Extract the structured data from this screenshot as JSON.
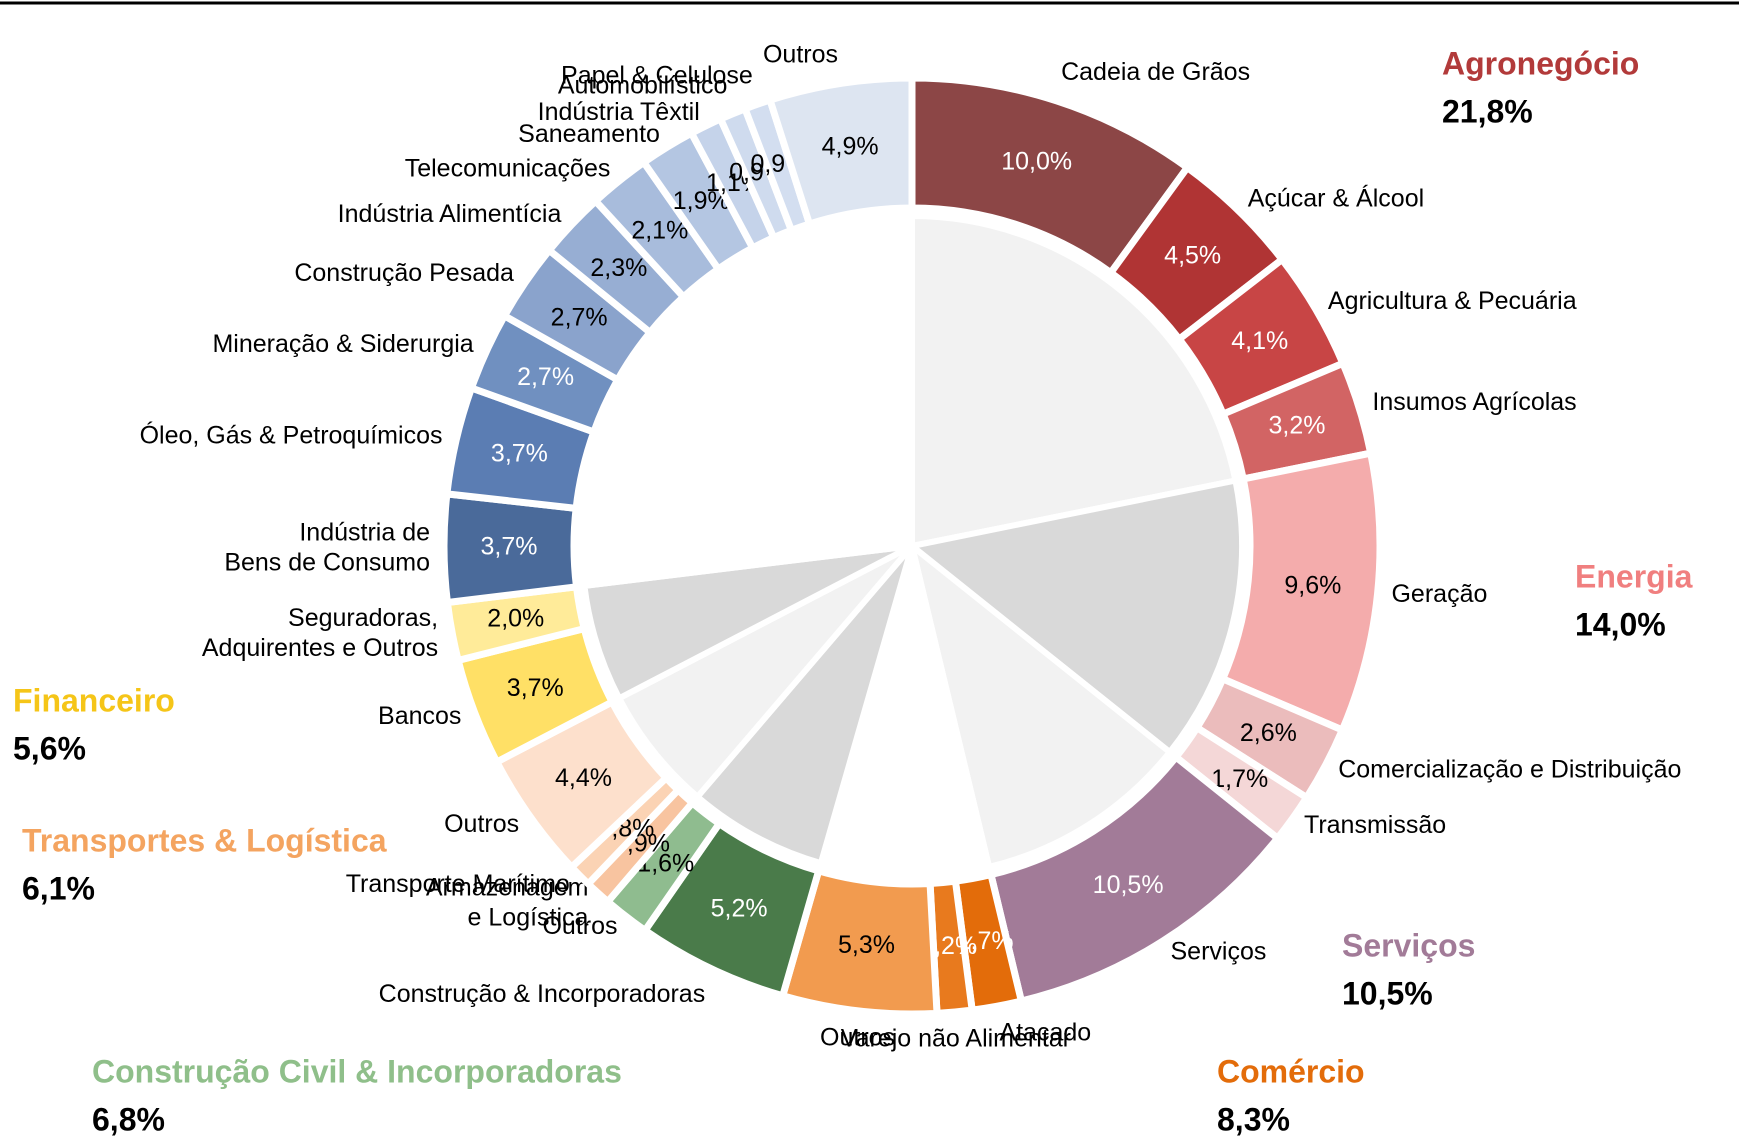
{
  "chart_data": {
    "type": "sunburst",
    "groups": [
      {
        "name": "Agronegócio",
        "value": 21.8,
        "value_label": "21,8%",
        "color": "#b23a3a",
        "inner_color": "#f2f2f2",
        "children": [
          {
            "name": "Cadeia de Grãos",
            "value": 10.0,
            "value_label": "10,0%",
            "color": "#8c4646"
          },
          {
            "name": "Açúcar & Álcool",
            "value": 4.5,
            "value_label": "4,5%",
            "color": "#b03434"
          },
          {
            "name": "Agricultura & Pecuária",
            "value": 4.1,
            "value_label": "4,1%",
            "color": "#c84545"
          },
          {
            "name": "Insumos Agrícolas",
            "value": 3.2,
            "value_label": "3,2%",
            "color": "#d26464"
          }
        ]
      },
      {
        "name": "Energia",
        "value": 14.0,
        "value_label": "14,0%",
        "color": "#f07f7f",
        "inner_color": "#d9d9d9",
        "children": [
          {
            "name": "Geração",
            "value": 9.6,
            "value_label": "9,6%",
            "color": "#f4acac"
          },
          {
            "name": "Comercialização e Distribuição",
            "value": 2.6,
            "value_label": "2,6%",
            "color": "#ebbcbc"
          },
          {
            "name": "Transmissão",
            "value": 1.7,
            "value_label": "1,7%",
            "color": "#f4d7d7"
          }
        ]
      },
      {
        "name": "Serviços",
        "value": 10.5,
        "value_label": "10,5%",
        "color": "#a27b98",
        "inner_color": "#f2f2f2",
        "children": [
          {
            "name": "Serviços",
            "value": 10.5,
            "value_label": "10,5%",
            "color": "#a27b98"
          }
        ]
      },
      {
        "name": "Comércio",
        "value": 8.3,
        "value_label": "8,3%",
        "color": "#e36c0a",
        "inner_color": "#ffffff",
        "children": [
          {
            "name": "Atacado",
            "value": 1.7,
            "value_label": "1,7%",
            "color": "#e36c0a"
          },
          {
            "name": "Varejo não Alimentar",
            "value": 1.2,
            "value_label": "1,2%",
            "color": "#e87a1e"
          },
          {
            "name": "Outros",
            "value": 5.3,
            "value_label": "5,3%",
            "color": "#f29b4f"
          }
        ]
      },
      {
        "name": "Construção Civil & Incorporadoras",
        "value": 6.8,
        "value_label": "6,8%",
        "color": "#8fbf8a",
        "inner_color": "#d9d9d9",
        "children": [
          {
            "name": "Construção & Incorporadoras",
            "value": 5.2,
            "value_label": "5,2%",
            "color": "#4a7b4a"
          },
          {
            "name": "Outros",
            "value": 1.6,
            "value_label": "1,6%",
            "color": "#8fbc8f"
          }
        ]
      },
      {
        "name": "Transportes & Logística",
        "value": 6.1,
        "value_label": "6,1%",
        "color": "#f4a460",
        "inner_color": "#f2f2f2",
        "children": [
          {
            "name": "Armazenagem\ne Logística",
            "value": 0.9,
            "value_label": "0,9%",
            "color": "#f8c4a0"
          },
          {
            "name": "Transporte Marítimo",
            "value": 0.8,
            "value_label": "0,8%",
            "color": "#fbd3b4"
          },
          {
            "name": "Outros",
            "value": 4.4,
            "value_label": "4,4%",
            "color": "#fde0cc"
          }
        ]
      },
      {
        "name": "Financeiro",
        "value": 5.6,
        "value_label": "5,6%",
        "color": "#f5c518",
        "inner_color": "#d9d9d9",
        "children": [
          {
            "name": "Bancos",
            "value": 3.7,
            "value_label": "3,7%",
            "color": "#ffe066"
          },
          {
            "name": "Seguradoras,\nAdquirentes e Outros",
            "value": 2.0,
            "value_label": "2,0%",
            "color": "#ffeb99"
          }
        ]
      },
      {
        "inner_color": "#ffffff",
        "children": [
          {
            "name": "Indústria de\nBens de Consumo",
            "value": 3.7,
            "value_label": "3,7%",
            "color": "#4a6a9a"
          },
          {
            "name": "Óleo, Gás & Petroquímicos",
            "value": 3.7,
            "value_label": "3,7%",
            "color": "#5b7db3"
          },
          {
            "name": "Mineração & Siderurgia",
            "value": 2.7,
            "value_label": "2,7%",
            "color": "#7090c0"
          },
          {
            "name": "Construção Pesada",
            "value": 2.7,
            "value_label": "2,7%",
            "color": "#8aa3cc"
          },
          {
            "name": "Indústria Alimentícia",
            "value": 2.3,
            "value_label": "2,3%",
            "color": "#97aed3"
          },
          {
            "name": "Telecomunicações",
            "value": 2.1,
            "value_label": "2,1%",
            "color": "#a8bcdc"
          },
          {
            "name": "Saneamento",
            "value": 1.9,
            "value_label": "1,9%",
            "color": "#b4c6e2"
          },
          {
            "name": "Indústria Têxtil",
            "value": 1.1,
            "value_label": "1,1%",
            "color": "#c5d3ea"
          },
          {
            "name": "Automobilístico",
            "value": 0.9,
            "value_label": "0,9%",
            "color": "#cfdbee"
          },
          {
            "name": "Papel & Celulose",
            "value": 0.9,
            "value_label": "0,9%",
            "color": "#d3def0"
          },
          {
            "name": "Outros",
            "value": 4.9,
            "value_label": "4,9%",
            "color": "#dde5f1"
          }
        ]
      }
    ]
  }
}
